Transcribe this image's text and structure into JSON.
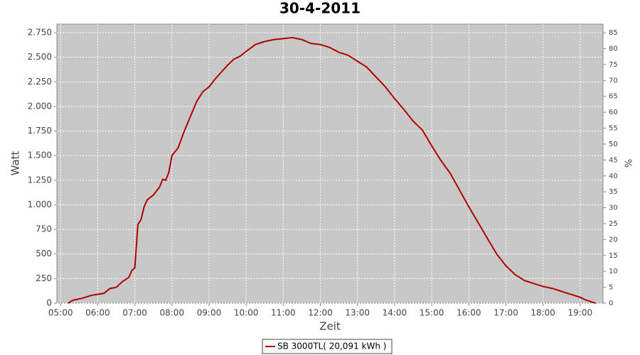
{
  "chart_data": {
    "type": "line",
    "title": "30-4-2011",
    "x_label": "Zeit",
    "y_label": "Watt",
    "y2_label": "%",
    "x": [
      "05:12",
      "05:20",
      "05:35",
      "05:50",
      "06:00",
      "06:10",
      "06:20",
      "06:30",
      "06:40",
      "06:50",
      "06:55",
      "07:00",
      "07:05",
      "07:10",
      "07:15",
      "07:20",
      "07:30",
      "07:40",
      "07:45",
      "07:50",
      "07:55",
      "08:00",
      "08:10",
      "08:20",
      "08:30",
      "08:40",
      "08:50",
      "09:00",
      "09:10",
      "09:20",
      "09:30",
      "09:40",
      "09:50",
      "10:00",
      "10:15",
      "10:30",
      "10:45",
      "11:00",
      "11:15",
      "11:30",
      "11:45",
      "12:00",
      "12:15",
      "12:30",
      "12:45",
      "13:00",
      "13:15",
      "13:30",
      "13:45",
      "14:00",
      "14:15",
      "14:30",
      "14:45",
      "15:00",
      "15:15",
      "15:30",
      "15:45",
      "16:00",
      "16:15",
      "16:30",
      "16:45",
      "17:00",
      "17:15",
      "17:30",
      "17:45",
      "18:00",
      "18:15",
      "18:30",
      "18:45",
      "19:00",
      "19:10",
      "19:20",
      "19:25"
    ],
    "series": [
      {
        "name": "SB 3000TL( 20,091 kWh )",
        "color": "#b00000",
        "values": [
          0,
          30,
          50,
          80,
          90,
          100,
          150,
          160,
          220,
          260,
          330,
          360,
          800,
          850,
          980,
          1050,
          1100,
          1180,
          1260,
          1250,
          1330,
          1500,
          1580,
          1750,
          1900,
          2050,
          2150,
          2200,
          2280,
          2350,
          2420,
          2480,
          2510,
          2560,
          2630,
          2660,
          2680,
          2690,
          2700,
          2680,
          2640,
          2630,
          2600,
          2550,
          2520,
          2460,
          2400,
          2300,
          2200,
          2080,
          1970,
          1850,
          1760,
          1600,
          1450,
          1320,
          1150,
          980,
          820,
          660,
          500,
          380,
          290,
          230,
          200,
          170,
          150,
          120,
          90,
          60,
          30,
          10,
          0
        ]
      }
    ],
    "xlim": [
      "04:54",
      "19:37"
    ],
    "xticks": [
      "05:00",
      "06:00",
      "07:00",
      "08:00",
      "09:00",
      "10:00",
      "11:00",
      "12:00",
      "13:00",
      "14:00",
      "15:00",
      "16:00",
      "17:00",
      "18:00",
      "19:00"
    ],
    "ylim": [
      0,
      2837
    ],
    "yticks": [
      0,
      250,
      500,
      750,
      {
        "value": 1000,
        "label": "1.000"
      },
      {
        "value": 1250,
        "label": "1.250"
      },
      {
        "value": 1500,
        "label": "1.500"
      },
      {
        "value": 1750,
        "label": "1.750"
      },
      {
        "value": 2000,
        "label": "2.000"
      },
      {
        "value": 2250,
        "label": "2.250"
      },
      {
        "value": 2500,
        "label": "2.500"
      },
      {
        "value": 2750,
        "label": "2.750"
      }
    ],
    "y2lim": [
      0,
      87.7
    ],
    "y2ticks": [
      0,
      5,
      10,
      15,
      20,
      25,
      30,
      35,
      40,
      45,
      50,
      55,
      60,
      65,
      70,
      75,
      80,
      85
    ],
    "grid": true
  }
}
